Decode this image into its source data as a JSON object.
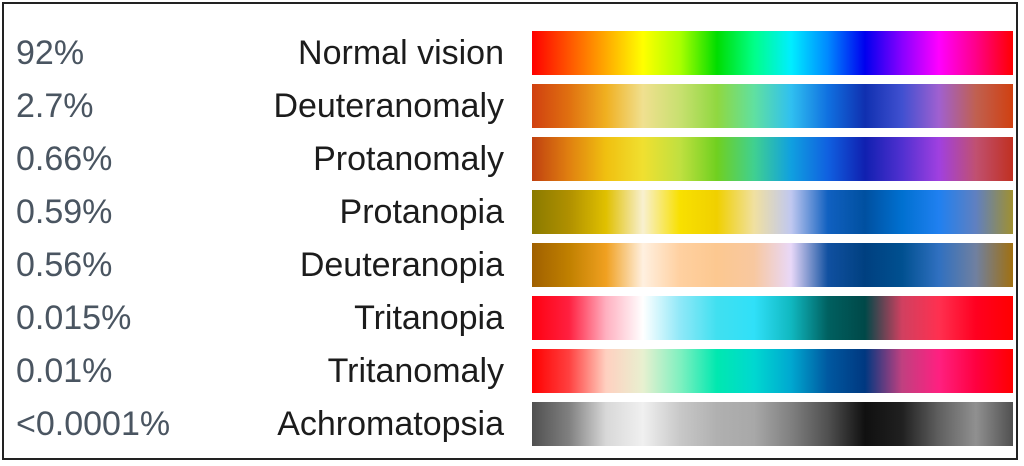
{
  "rows": [
    {
      "percent": "92%",
      "label": "Normal vision",
      "stops": [
        "#ff0000",
        "#ff5500",
        "#ffaa00",
        "#ffff00",
        "#aaff00",
        "#00dd00",
        "#00ff88",
        "#00eeff",
        "#0088ff",
        "#0000ee",
        "#8800ff",
        "#ff00ff",
        "#ff0088",
        "#ff0000"
      ]
    },
    {
      "percent": "2.7%",
      "label": "Deuteranomaly",
      "stops": [
        "#d04010",
        "#e07010",
        "#f0b020",
        "#f0e090",
        "#c8e070",
        "#90d840",
        "#60e0a0",
        "#30c0f0",
        "#1070e0",
        "#1030b0",
        "#4050d0",
        "#a060d0",
        "#c06050",
        "#d04010"
      ]
    },
    {
      "percent": "0.66%",
      "label": "Protanomaly",
      "stops": [
        "#c04010",
        "#e08010",
        "#f0c010",
        "#f0e030",
        "#c0e040",
        "#70d020",
        "#40d090",
        "#10a0e0",
        "#1060e0",
        "#1020b0",
        "#5030d0",
        "#a040e0",
        "#c05070",
        "#c03020"
      ]
    },
    {
      "percent": "0.59%",
      "label": "Protanopia",
      "stops": [
        "#8a7a00",
        "#b09000",
        "#e0c000",
        "#f8f0d0",
        "#f8e000",
        "#f0d000",
        "#f0e0a0",
        "#c0c8f0",
        "#1060c0",
        "#0050a0",
        "#0070d0",
        "#2080f0",
        "#6080c0",
        "#a09030"
      ]
    },
    {
      "percent": "0.56%",
      "label": "Deuteranopia",
      "stops": [
        "#a06000",
        "#c08000",
        "#f0a020",
        "#fff0e0",
        "#ffd0a0",
        "#fcc890",
        "#f8c8a0",
        "#e8d8f8",
        "#1050a0",
        "#004080",
        "#005090",
        "#3070c0",
        "#7080a0",
        "#a07010"
      ]
    },
    {
      "percent": "0.015%",
      "label": "Tritanopia",
      "stops": [
        "#ff0010",
        "#ff2040",
        "#ffb0c0",
        "#ffffff",
        "#90e8f8",
        "#40e0f0",
        "#30e0f8",
        "#10b8c0",
        "#006060",
        "#004848",
        "#d04060",
        "#ff3050",
        "#ff0020",
        "#ff0000"
      ]
    },
    {
      "percent": "0.01%",
      "label": "Tritanomaly",
      "stops": [
        "#ff0000",
        "#ff4040",
        "#ffd0c0",
        "#e8f0d0",
        "#80f0c0",
        "#00e8b0",
        "#00d8d0",
        "#00a8d0",
        "#0058a0",
        "#003880",
        "#c04080",
        "#ff2080",
        "#ff0040",
        "#ff0000"
      ]
    },
    {
      "percent": "<0.0001%",
      "label": "Achromatopsia",
      "stops": [
        "#505050",
        "#808080",
        "#d8d8d8",
        "#f0f0f0",
        "#c8c8c8",
        "#b0b0b0",
        "#a8a8a8",
        "#808080",
        "#505050",
        "#101010",
        "#202020",
        "#606060",
        "#909090",
        "#505050"
      ]
    }
  ]
}
